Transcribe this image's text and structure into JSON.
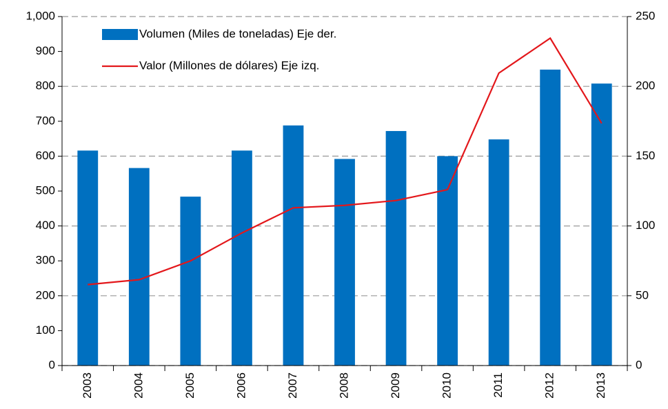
{
  "chart_data": {
    "type": "bar-line",
    "categories": [
      "2003",
      "2004",
      "2005",
      "2006",
      "2007",
      "2008",
      "2009",
      "2010",
      "2011",
      "2012",
      "2013"
    ],
    "series": [
      {
        "name": "Volumen (Miles de toneladas) Eje der.",
        "type": "bar",
        "axis": "y2",
        "color": "#0070c0",
        "values": [
          154,
          141.5,
          121,
          154,
          172,
          148,
          168,
          150,
          162,
          212,
          202
        ]
      },
      {
        "name": "Valor (Millones de dólares) Eje izq.",
        "type": "line",
        "axis": "y",
        "color": "#e3171b",
        "values": [
          232,
          246,
          300,
          380,
          452,
          459,
          473,
          504,
          838,
          938,
          694
        ]
      }
    ],
    "ylim": [
      0,
      1000
    ],
    "yticks": [
      0,
      100,
      200,
      300,
      400,
      500,
      600,
      700,
      800,
      900,
      {
        "value": 1000,
        "label": "1,000"
      }
    ],
    "y2lim": [
      0,
      250
    ],
    "y2ticks": [
      0,
      50,
      100,
      150,
      200,
      250
    ],
    "grid": true,
    "legend": "top-left"
  }
}
